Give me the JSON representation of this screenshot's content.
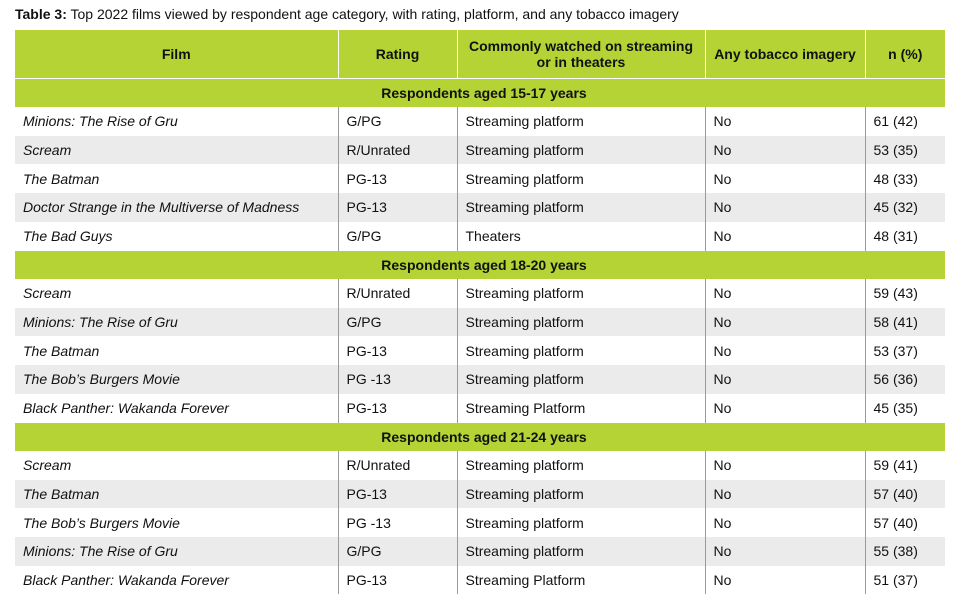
{
  "title": {
    "label": "Table 3:",
    "text": "Top 2022 films viewed by respondent age category, with rating, platform, and any tobacco imagery"
  },
  "table": {
    "columns": [
      "Film",
      "Rating",
      "Commonly watched on streaming or in theaters",
      "Any tobacco imagery",
      "n (%)"
    ],
    "groups": [
      {
        "label": "Respondents aged 15-17 years",
        "rows": [
          [
            "Minions: The Rise of Gru",
            "G/PG",
            "Streaming platform",
            "No",
            "61 (42)"
          ],
          [
            "Scream",
            "R/Unrated",
            "Streaming platform",
            "No",
            "53 (35)"
          ],
          [
            "The Batman",
            "PG-13",
            "Streaming platform",
            "No",
            "48 (33)"
          ],
          [
            "Doctor Strange in the Multiverse of Madness",
            "PG-13",
            "Streaming platform",
            "No",
            "45 (32)"
          ],
          [
            "The Bad Guys",
            "G/PG",
            "Theaters",
            "No",
            "48 (31)"
          ]
        ]
      },
      {
        "label": "Respondents aged 18-20 years",
        "rows": [
          [
            "Scream",
            "R/Unrated",
            "Streaming platform",
            "No",
            "59 (43)"
          ],
          [
            "Minions: The Rise of Gru",
            "G/PG",
            "Streaming platform",
            "No",
            "58 (41)"
          ],
          [
            "The Batman",
            "PG-13",
            "Streaming platform",
            "No",
            "53 (37)"
          ],
          [
            "The Bob’s Burgers Movie",
            "PG -13",
            "Streaming platform",
            "No",
            "56 (36)"
          ],
          [
            "Black Panther: Wakanda Forever",
            "PG-13",
            "Streaming Platform",
            "No",
            "45 (35)"
          ]
        ]
      },
      {
        "label": "Respondents aged 21-24 years",
        "rows": [
          [
            "Scream",
            "R/Unrated",
            "Streaming platform",
            "No",
            "59 (41)"
          ],
          [
            "The Batman",
            "PG-13",
            "Streaming platform",
            "No",
            "57 (40)"
          ],
          [
            "The Bob’s Burgers Movie",
            "PG -13",
            "Streaming platform",
            "No",
            "57 (40)"
          ],
          [
            "Minions: The Rise of Gru",
            "G/PG",
            "Streaming platform",
            "No",
            "55 (38)"
          ],
          [
            "Black Panther: Wakanda Forever",
            "PG-13",
            "Streaming Platform",
            "No",
            "51 (37)"
          ]
        ]
      }
    ]
  }
}
